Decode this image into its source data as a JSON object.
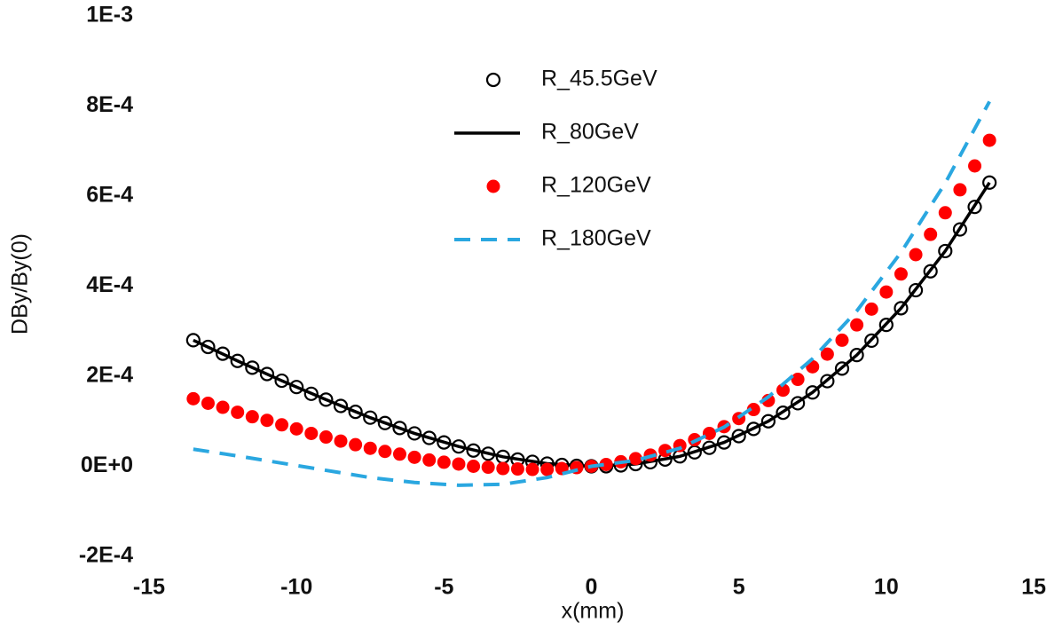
{
  "chart_data": {
    "type": "scatter",
    "x_label": "x(mm)",
    "y_label": "DBy/By(0)",
    "xlim": [
      -15,
      15
    ],
    "xticks": [
      -15,
      -10,
      -5,
      0,
      5,
      10,
      15
    ],
    "ylim": [
      -0.0002,
      0.001
    ],
    "yticks": [
      {
        "value": -0.0002,
        "label": "-2E-4"
      },
      {
        "value": 0,
        "label": "0E+0"
      },
      {
        "value": 0.0002,
        "label": "2E-4"
      },
      {
        "value": 0.0004,
        "label": "4E-4"
      },
      {
        "value": 0.0006,
        "label": "6E-4"
      },
      {
        "value": 0.0008,
        "label": "8E-4"
      },
      {
        "value": 0.001,
        "label": "1E-3"
      }
    ],
    "grid": false,
    "legend": "top",
    "series": [
      {
        "name": "R_45.5GeV",
        "color": "#000000",
        "mode": "markers",
        "marker": "open-circle",
        "x": [
          -13.5,
          -13,
          -12.5,
          -12,
          -11.5,
          -11,
          -10.5,
          -10,
          -9.5,
          -9,
          -8.5,
          -8,
          -7.5,
          -7,
          -6.5,
          -6,
          -5.5,
          -5,
          -4.5,
          -4,
          -3.5,
          -3,
          -2.5,
          -2,
          -1.5,
          -1,
          -0.5,
          0,
          0.5,
          1,
          1.5,
          2,
          2.5,
          3,
          3.5,
          4,
          4.5,
          5,
          5.5,
          6,
          6.5,
          7,
          7.5,
          8,
          8.5,
          9,
          9.5,
          10,
          10.5,
          11,
          11.5,
          12,
          12.5,
          13,
          13.5
        ],
        "values": [
          0.00028,
          0.000265,
          0.00025,
          0.000234,
          0.000219,
          0.000205,
          0.00019,
          0.000176,
          0.000161,
          0.000148,
          0.000134,
          0.000121,
          0.000108,
          9.6e-05,
          8.5e-05,
          7.3e-05,
          6.3e-05,
          5.3e-05,
          4.4e-05,
          3.5e-05,
          2.8e-05,
          2.1e-05,
          1.5e-05,
          1e-05,
          6e-06,
          3e-06,
          1e-06,
          0,
          0,
          2e-06,
          5e-06,
          9e-06,
          1.5e-05,
          2.2e-05,
          3.1e-05,
          4.1e-05,
          5.3e-05,
          6.7e-05,
          8.3e-05,
          0.0001,
          0.000119,
          0.00014,
          0.000164,
          0.000189,
          0.000217,
          0.000247,
          0.000279,
          0.000314,
          0.000351,
          0.000391,
          0.000433,
          0.000478,
          0.000526,
          0.000576,
          0.00063
        ]
      },
      {
        "name": "R_80GeV",
        "color": "#000000",
        "mode": "line",
        "dash": "solid",
        "x": [
          -13.5,
          -12,
          -10.5,
          -9,
          -7.5,
          -6,
          -4.5,
          -3,
          -1.5,
          0,
          1.5,
          3,
          4.5,
          6,
          7.5,
          9,
          10.5,
          12,
          13.5
        ],
        "values": [
          0.00028,
          0.000234,
          0.00019,
          0.000148,
          0.000108,
          7.3e-05,
          4.4e-05,
          2.1e-05,
          6e-06,
          0,
          5e-06,
          2.2e-05,
          5.3e-05,
          0.0001,
          0.000164,
          0.000247,
          0.000351,
          0.000478,
          0.00063
        ]
      },
      {
        "name": "R_120GeV",
        "color": "#ff0000",
        "mode": "markers",
        "marker": "filled-circle",
        "x": [
          -13.5,
          -13,
          -12.5,
          -12,
          -11.5,
          -11,
          -10.5,
          -10,
          -9.5,
          -9,
          -8.5,
          -8,
          -7.5,
          -7,
          -6.5,
          -6,
          -5.5,
          -5,
          -4.5,
          -4,
          -3.5,
          -3,
          -2.5,
          -2,
          -1.5,
          -1,
          -0.5,
          0,
          0.5,
          1,
          1.5,
          2,
          2.5,
          3,
          3.5,
          4,
          4.5,
          5,
          5.5,
          6,
          6.5,
          7,
          7.5,
          8,
          8.5,
          9,
          9.5,
          10,
          10.5,
          11,
          11.5,
          12,
          12.5,
          13,
          13.5
        ],
        "values": [
          0.00015,
          0.00014,
          0.000131,
          0.00012,
          0.00011,
          0.000102,
          9.2e-05,
          8.3e-05,
          7.3e-05,
          6.5e-05,
          5.6e-05,
          4.8e-05,
          4e-05,
          3.3e-05,
          2.7e-05,
          2e-05,
          1.4e-05,
          9e-06,
          5e-06,
          0,
          -2e-06,
          -5e-06,
          -6e-06,
          -7e-06,
          -7e-06,
          -5e-06,
          -3e-06,
          0,
          4e-06,
          1e-05,
          1.7e-05,
          2.5e-05,
          3.5e-05,
          4.6e-05,
          5.9e-05,
          7.3e-05,
          8.8e-05,
          0.000106,
          0.000126,
          0.000146,
          0.000169,
          0.000193,
          0.000221,
          0.000249,
          0.00028,
          0.000314,
          0.000349,
          0.000387,
          0.000427,
          0.00047,
          0.000515,
          0.000563,
          0.000614,
          0.000667,
          0.000724
        ]
      },
      {
        "name": "R_180GeV",
        "color": "#2aa7e0",
        "mode": "line",
        "dash": "dashed",
        "x": [
          -13.5,
          -12,
          -10.5,
          -9,
          -7.5,
          -6,
          -4.5,
          -3,
          -1.5,
          0,
          1.5,
          3,
          4.5,
          6,
          7.5,
          9,
          10.5,
          12,
          13.5
        ],
        "values": [
          3.8e-05,
          2.3e-05,
          7e-06,
          -9e-06,
          -2.5e-05,
          -3.6e-05,
          -4.2e-05,
          -4e-05,
          -2.5e-05,
          0,
          1.3e-05,
          4e-05,
          8.7e-05,
          0.000154,
          0.000239,
          0.000345,
          0.000475,
          0.000629,
          0.00081
        ]
      }
    ]
  }
}
